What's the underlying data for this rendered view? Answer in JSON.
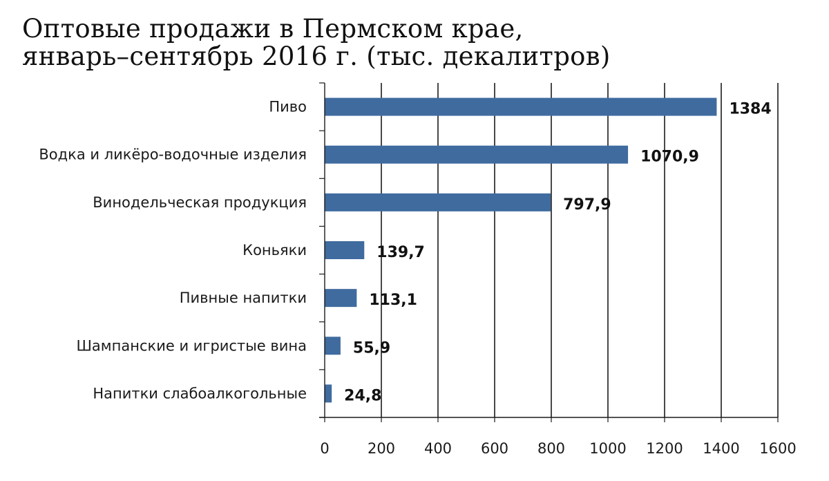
{
  "chart_data": {
    "type": "bar",
    "orientation": "horizontal",
    "title_line1": "Оптовые продажи в Пермском крае,",
    "title_line2": "январь–сентябрь 2016 г. (тыс. декалитров)",
    "categories": [
      "Пиво",
      "Водка и ликёро-водочные изделия",
      "Винодельческая продукция",
      "Коньяки",
      "Пивные напитки",
      "Шампанские и игристые вина",
      "Напитки слабоалкогольные"
    ],
    "values": [
      1384,
      1070.9,
      797.9,
      139.7,
      113.1,
      55.9,
      24.8
    ],
    "value_labels": [
      "1384",
      "1070,9",
      "797,9",
      "139,7",
      "113,1",
      "55,9",
      "24,8"
    ],
    "xlim": [
      0,
      1600
    ],
    "x_ticks": [
      0,
      200,
      400,
      600,
      800,
      1000,
      1200,
      1400,
      1600
    ],
    "x_tick_labels": [
      "0",
      "200",
      "400",
      "600",
      "800",
      "1000",
      "1200",
      "1400",
      "1600"
    ],
    "grid": "vertical",
    "bar_color": "#3f6b9f",
    "grid_color": "#1a1a1a"
  }
}
